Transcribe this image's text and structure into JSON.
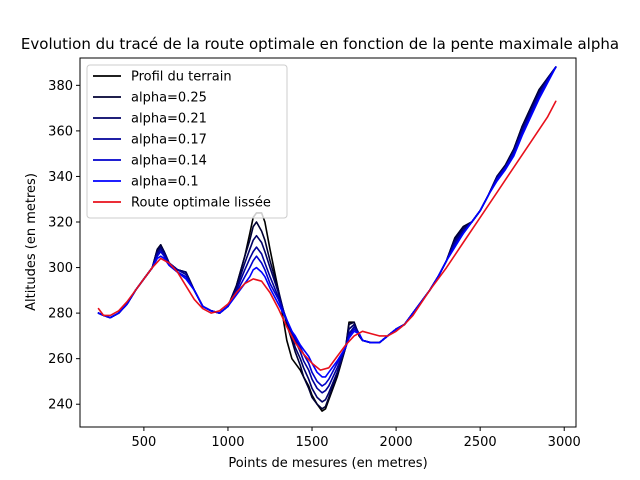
{
  "chart_data": {
    "type": "line",
    "title": "Evolution du tracé de la route optimale en fonction de la pente maximale alpha",
    "xlabel": "Points de mesures (en metres)",
    "ylabel": "Altitudes (en metres)",
    "xlim": [
      120,
      3070
    ],
    "ylim": [
      230,
      392
    ],
    "xticks": [
      500,
      1000,
      1500,
      2000,
      2500,
      3000
    ],
    "yticks": [
      240,
      260,
      280,
      300,
      320,
      340,
      360,
      380
    ],
    "legend_position": "top-left",
    "grid": false,
    "series": [
      {
        "name": "Profil du terrain",
        "color": "#000000",
        "x": [
          230,
          260,
          300,
          350,
          400,
          450,
          500,
          550,
          580,
          600,
          620,
          650,
          700,
          750,
          800,
          850,
          900,
          950,
          1000,
          1050,
          1100,
          1130,
          1150,
          1170,
          1200,
          1220,
          1250,
          1300,
          1350,
          1380,
          1400,
          1430,
          1450,
          1480,
          1500,
          1530,
          1560,
          1580,
          1600,
          1650,
          1700,
          1720,
          1750,
          1780,
          1800,
          1850,
          1900,
          1950,
          2000,
          2050,
          2100,
          2150,
          2200,
          2250,
          2300,
          2350,
          2400,
          2450,
          2500,
          2550,
          2600,
          2650,
          2700,
          2750,
          2800,
          2850,
          2900,
          2950
        ],
        "y": [
          280,
          279,
          278,
          280,
          284,
          290,
          295,
          300,
          308,
          310,
          307,
          302,
          299,
          298,
          290,
          283,
          281,
          280,
          283,
          292,
          305,
          315,
          322,
          324,
          324,
          320,
          308,
          290,
          268,
          260,
          258,
          255,
          252,
          248,
          244,
          240,
          237,
          238,
          242,
          252,
          265,
          276,
          276,
          270,
          268,
          267,
          267,
          270,
          273,
          275,
          280,
          285,
          290,
          296,
          303,
          313,
          318,
          320,
          325,
          332,
          340,
          345,
          352,
          362,
          370,
          378,
          383,
          388
        ]
      },
      {
        "name": "alpha=0.25",
        "color": "#000033",
        "x": [
          230,
          260,
          300,
          350,
          400,
          450,
          500,
          550,
          580,
          600,
          620,
          650,
          700,
          750,
          800,
          850,
          900,
          950,
          1000,
          1050,
          1100,
          1130,
          1150,
          1170,
          1200,
          1220,
          1250,
          1300,
          1350,
          1380,
          1400,
          1430,
          1450,
          1480,
          1500,
          1530,
          1560,
          1580,
          1600,
          1650,
          1700,
          1720,
          1750,
          1780,
          1800,
          1850,
          1900,
          1950,
          2000,
          2050,
          2100,
          2150,
          2200,
          2250,
          2300,
          2350,
          2400,
          2450,
          2500,
          2550,
          2600,
          2650,
          2700,
          2750,
          2800,
          2850,
          2900,
          2950
        ],
        "y": [
          280,
          279,
          278,
          280,
          284,
          290,
          295,
          300,
          308,
          310,
          307,
          302,
          299,
          298,
          290,
          283,
          281,
          280,
          283,
          292,
          305,
          312,
          318,
          320,
          316,
          312,
          303,
          290,
          275,
          268,
          263,
          257,
          252,
          247,
          243,
          240,
          238,
          239,
          243,
          253,
          265,
          275,
          276,
          270,
          268,
          267,
          267,
          270,
          273,
          275,
          280,
          285,
          290,
          296,
          303,
          313,
          318,
          320,
          325,
          332,
          340,
          345,
          352,
          362,
          370,
          378,
          383,
          388
        ]
      },
      {
        "name": "alpha=0.21",
        "color": "#000066",
        "x": [
          230,
          260,
          300,
          350,
          400,
          450,
          500,
          550,
          580,
          600,
          620,
          650,
          700,
          750,
          800,
          850,
          900,
          950,
          1000,
          1050,
          1100,
          1130,
          1150,
          1170,
          1200,
          1220,
          1250,
          1300,
          1350,
          1380,
          1400,
          1430,
          1450,
          1480,
          1500,
          1530,
          1560,
          1580,
          1600,
          1650,
          1700,
          1720,
          1750,
          1780,
          1800,
          1850,
          1900,
          1950,
          2000,
          2050,
          2100,
          2150,
          2200,
          2250,
          2300,
          2350,
          2400,
          2450,
          2500,
          2550,
          2600,
          2650,
          2700,
          2750,
          2800,
          2850,
          2900,
          2950
        ],
        "y": [
          280,
          279,
          278,
          280,
          284,
          290,
          295,
          300,
          307,
          309,
          307,
          302,
          299,
          298,
          290,
          283,
          281,
          280,
          283,
          291,
          302,
          308,
          312,
          314,
          311,
          307,
          300,
          289,
          276,
          270,
          265,
          260,
          256,
          251,
          247,
          243,
          241,
          242,
          245,
          254,
          265,
          273,
          275,
          271,
          268,
          267,
          267,
          270,
          273,
          275,
          280,
          285,
          290,
          296,
          303,
          312,
          317,
          320,
          325,
          332,
          340,
          344,
          351,
          361,
          369,
          377,
          383,
          388
        ]
      },
      {
        "name": "alpha=0.17",
        "color": "#000099",
        "x": [
          230,
          260,
          300,
          350,
          400,
          450,
          500,
          550,
          580,
          600,
          620,
          650,
          700,
          750,
          800,
          850,
          900,
          950,
          1000,
          1050,
          1100,
          1130,
          1150,
          1170,
          1200,
          1220,
          1250,
          1300,
          1350,
          1380,
          1400,
          1430,
          1450,
          1480,
          1500,
          1530,
          1560,
          1580,
          1600,
          1650,
          1700,
          1720,
          1750,
          1780,
          1800,
          1850,
          1900,
          1950,
          2000,
          2050,
          2100,
          2150,
          2200,
          2250,
          2300,
          2350,
          2400,
          2450,
          2500,
          2550,
          2600,
          2650,
          2700,
          2750,
          2800,
          2850,
          2900,
          2950
        ],
        "y": [
          280,
          279,
          278,
          280,
          284,
          290,
          295,
          300,
          306,
          308,
          306,
          302,
          299,
          297,
          290,
          283,
          281,
          280,
          283,
          290,
          299,
          304,
          307,
          309,
          306,
          302,
          296,
          287,
          277,
          271,
          268,
          263,
          259,
          255,
          251,
          247,
          245,
          246,
          248,
          256,
          265,
          271,
          274,
          271,
          268,
          267,
          267,
          270,
          273,
          275,
          280,
          285,
          290,
          296,
          303,
          311,
          316,
          320,
          325,
          332,
          339,
          344,
          351,
          360,
          368,
          376,
          382,
          388
        ]
      },
      {
        "name": "alpha=0.14",
        "color": "#0000cc",
        "x": [
          230,
          260,
          300,
          350,
          400,
          450,
          500,
          550,
          580,
          600,
          620,
          650,
          700,
          750,
          800,
          850,
          900,
          950,
          1000,
          1050,
          1100,
          1130,
          1150,
          1170,
          1200,
          1220,
          1250,
          1300,
          1350,
          1380,
          1400,
          1430,
          1450,
          1480,
          1500,
          1530,
          1560,
          1580,
          1600,
          1650,
          1700,
          1720,
          1750,
          1780,
          1800,
          1850,
          1900,
          1950,
          2000,
          2050,
          2100,
          2150,
          2200,
          2250,
          2300,
          2350,
          2400,
          2450,
          2500,
          2550,
          2600,
          2650,
          2700,
          2750,
          2800,
          2850,
          2900,
          2950
        ],
        "y": [
          280,
          279,
          278,
          280,
          284,
          290,
          295,
          300,
          305,
          307,
          305,
          301,
          298,
          296,
          290,
          283,
          281,
          280,
          283,
          289,
          296,
          300,
          303,
          305,
          302,
          299,
          293,
          286,
          277,
          272,
          269,
          265,
          262,
          258,
          254,
          250,
          248,
          249,
          251,
          258,
          265,
          270,
          273,
          271,
          268,
          267,
          267,
          270,
          273,
          275,
          280,
          285,
          290,
          296,
          303,
          310,
          315,
          320,
          325,
          332,
          339,
          344,
          350,
          359,
          367,
          375,
          382,
          388
        ]
      },
      {
        "name": "alpha=0.1",
        "color": "#0000ff",
        "x": [
          230,
          260,
          300,
          350,
          400,
          450,
          500,
          550,
          580,
          600,
          620,
          650,
          700,
          750,
          800,
          850,
          900,
          950,
          1000,
          1050,
          1100,
          1130,
          1150,
          1170,
          1200,
          1220,
          1250,
          1300,
          1350,
          1380,
          1400,
          1430,
          1450,
          1480,
          1500,
          1530,
          1560,
          1580,
          1600,
          1650,
          1700,
          1720,
          1750,
          1780,
          1800,
          1850,
          1900,
          1950,
          2000,
          2050,
          2100,
          2150,
          2200,
          2250,
          2300,
          2350,
          2400,
          2450,
          2500,
          2550,
          2600,
          2650,
          2700,
          2750,
          2800,
          2850,
          2900,
          2950
        ],
        "y": [
          280,
          279,
          278,
          280,
          284,
          290,
          295,
          300,
          304,
          305,
          304,
          301,
          298,
          295,
          290,
          283,
          281,
          280,
          283,
          288,
          293,
          296,
          299,
          300,
          298,
          296,
          291,
          284,
          277,
          272,
          270,
          266,
          264,
          261,
          258,
          254,
          252,
          252,
          254,
          259,
          265,
          269,
          272,
          271,
          268,
          267,
          267,
          270,
          273,
          275,
          280,
          285,
          290,
          296,
          303,
          309,
          315,
          320,
          325,
          332,
          338,
          343,
          349,
          358,
          366,
          374,
          381,
          388
        ]
      },
      {
        "name": "Route optimale lissée",
        "color": "#e8101c",
        "x": [
          230,
          260,
          300,
          350,
          400,
          450,
          500,
          550,
          600,
          650,
          700,
          750,
          800,
          850,
          900,
          950,
          1000,
          1050,
          1100,
          1150,
          1200,
          1250,
          1300,
          1350,
          1400,
          1450,
          1500,
          1550,
          1600,
          1650,
          1700,
          1750,
          1800,
          1850,
          1900,
          1950,
          2000,
          2050,
          2100,
          2200,
          2300,
          2400,
          2500,
          2600,
          2700,
          2800,
          2900,
          2950
        ],
        "y": [
          282,
          279,
          279,
          281,
          285,
          290,
          295,
          300,
          304,
          302,
          298,
          292,
          286,
          282,
          280,
          281,
          284,
          289,
          293,
          295,
          294,
          289,
          282,
          274,
          267,
          262,
          258,
          255,
          256,
          261,
          266,
          270,
          272,
          271,
          270,
          270,
          272,
          275,
          279,
          290,
          300,
          311,
          322,
          333,
          344,
          355,
          366,
          373
        ]
      }
    ]
  }
}
